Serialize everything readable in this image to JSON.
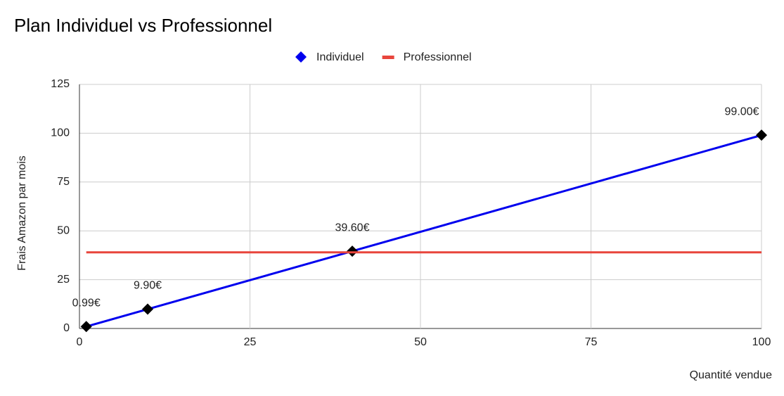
{
  "chart_data": {
    "type": "line",
    "title": "Plan Individuel vs Professionnel",
    "x_label": "Quantité vendue",
    "y_label": "Frais Amazon par mois",
    "series": [
      {
        "name": "Individuel",
        "color": "#0000ee",
        "marker_color": "#000000",
        "marker": "diamond",
        "x": [
          1,
          10,
          40,
          100
        ],
        "values": [
          0.99,
          9.9,
          39.6,
          99
        ],
        "value_labels": [
          "0.99€",
          "9.90€",
          "39.60€",
          "99.00€"
        ]
      },
      {
        "name": "Professionnel",
        "color": "#e8453c",
        "x": [
          1,
          100
        ],
        "values": [
          39,
          39
        ]
      }
    ],
    "xlim": [
      0,
      100
    ],
    "xticks": [
      0,
      25,
      50,
      75,
      100
    ],
    "ylim": [
      0,
      125
    ],
    "yticks": [
      0,
      25,
      50,
      75,
      100,
      125
    ],
    "grid": true,
    "legend": "top"
  }
}
